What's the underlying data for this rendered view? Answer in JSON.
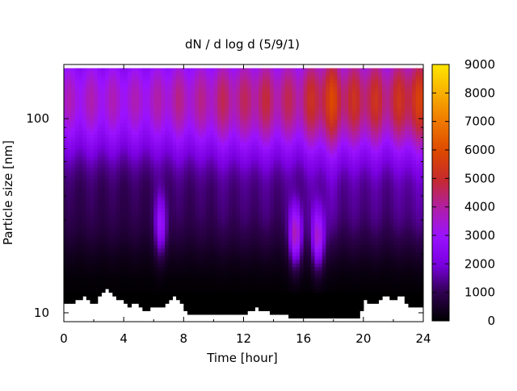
{
  "chart_data": {
    "type": "heatmap",
    "title": "dN / d log d (5/9/1)",
    "xlabel": "Time [hour]",
    "ylabel": "Particle size [nm]",
    "xlim": [
      0,
      24
    ],
    "ylim": [
      9,
      190
    ],
    "y_scale": "log",
    "x_ticks": [
      0,
      4,
      8,
      12,
      16,
      20,
      24
    ],
    "y_ticks": [
      10,
      100
    ],
    "colorbar": {
      "min": 0,
      "max": 9000,
      "ticks": [
        0,
        1000,
        2000,
        3000,
        4000,
        5000,
        6000,
        7000,
        8000,
        9000
      ],
      "colormap": "gnuplot (black-purple-red-orange-yellow)"
    },
    "size_distribution_peak_nm": 125,
    "peak_concentration_by_hour": [
      {
        "hour": 0,
        "value": 3800
      },
      {
        "hour": 2,
        "value": 3900
      },
      {
        "hour": 4,
        "value": 3800
      },
      {
        "hour": 6,
        "value": 3900
      },
      {
        "hour": 7,
        "value": 4200
      },
      {
        "hour": 8,
        "value": 4300
      },
      {
        "hour": 9,
        "value": 4200
      },
      {
        "hour": 10,
        "value": 4500
      },
      {
        "hour": 11,
        "value": 4800
      },
      {
        "hour": 12,
        "value": 4600
      },
      {
        "hour": 13,
        "value": 5000
      },
      {
        "hour": 14,
        "value": 4800
      },
      {
        "hour": 15,
        "value": 4700
      },
      {
        "hour": 16,
        "value": 4900
      },
      {
        "hour": 17,
        "value": 5600
      },
      {
        "hour": 18,
        "value": 6000
      },
      {
        "hour": 19,
        "value": 5200
      },
      {
        "hour": 20,
        "value": 5400
      },
      {
        "hour": 21,
        "value": 5300
      },
      {
        "hour": 22,
        "value": 5100
      },
      {
        "hour": 23,
        "value": 5900
      },
      {
        "hour": 24,
        "value": 5700
      }
    ],
    "nucleation_events": [
      {
        "hour": 6.5,
        "size_nm": 28,
        "value": 2200
      },
      {
        "hour": 15.5,
        "size_nm": 25,
        "value": 3600
      },
      {
        "hour": 17.0,
        "size_nm": 24,
        "value": 3300
      }
    ],
    "no_data_boundary_nm": [
      {
        "hour": 0.0,
        "value": 11.5
      },
      {
        "hour": 0.5,
        "value": 11.0
      },
      {
        "hour": 1.0,
        "value": 11.8
      },
      {
        "hour": 1.5,
        "value": 12.0
      },
      {
        "hour": 2.0,
        "value": 11.0
      },
      {
        "hour": 2.5,
        "value": 12.6
      },
      {
        "hour": 2.8,
        "value": 13.5
      },
      {
        "hour": 3.3,
        "value": 12.2
      },
      {
        "hour": 3.8,
        "value": 11.6
      },
      {
        "hour": 4.3,
        "value": 10.6
      },
      {
        "hour": 4.8,
        "value": 11.6
      },
      {
        "hour": 5.2,
        "value": 10.6
      },
      {
        "hour": 5.6,
        "value": 10.3
      },
      {
        "hour": 6.0,
        "value": 10.8
      },
      {
        "hour": 6.4,
        "value": 10.6
      },
      {
        "hour": 7.0,
        "value": 11.3
      },
      {
        "hour": 7.4,
        "value": 12.2
      },
      {
        "hour": 7.8,
        "value": 11.2
      },
      {
        "hour": 8.2,
        "value": 10.0
      },
      {
        "hour": 9.0,
        "value": 9.8
      },
      {
        "hour": 10.0,
        "value": 9.7
      },
      {
        "hour": 11.0,
        "value": 9.7
      },
      {
        "hour": 12.0,
        "value": 9.8
      },
      {
        "hour": 12.8,
        "value": 10.6
      },
      {
        "hour": 13.4,
        "value": 10.2
      },
      {
        "hour": 14.0,
        "value": 9.8
      },
      {
        "hour": 15.0,
        "value": 9.6
      },
      {
        "hour": 16.0,
        "value": 9.6
      },
      {
        "hour": 17.0,
        "value": 9.6
      },
      {
        "hour": 18.0,
        "value": 9.6
      },
      {
        "hour": 19.0,
        "value": 9.6
      },
      {
        "hour": 19.8,
        "value": 9.6
      },
      {
        "hour": 20.0,
        "value": 11.6
      },
      {
        "hour": 20.6,
        "value": 11.0
      },
      {
        "hour": 21.0,
        "value": 11.6
      },
      {
        "hour": 21.5,
        "value": 12.2
      },
      {
        "hour": 22.0,
        "value": 11.2
      },
      {
        "hour": 22.5,
        "value": 12.6
      },
      {
        "hour": 23.0,
        "value": 11.0
      },
      {
        "hour": 23.6,
        "value": 10.6
      },
      {
        "hour": 24.0,
        "value": 10.6
      }
    ],
    "grid": false,
    "legend": "none"
  }
}
